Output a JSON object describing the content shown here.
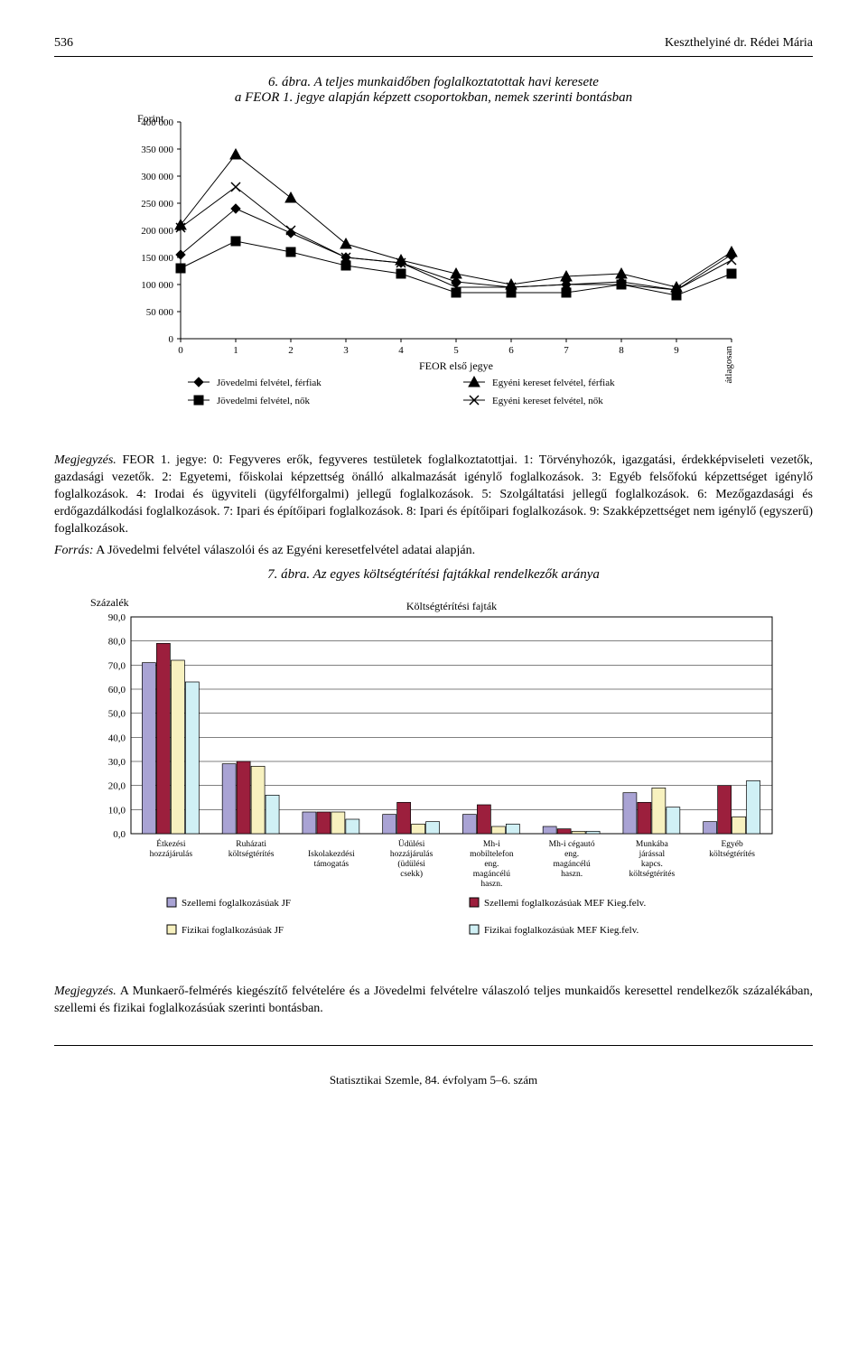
{
  "header": {
    "page_no": "536",
    "author": "Keszthelyiné dr. Rédei Mária"
  },
  "fig6": {
    "title_line1": "6. ábra. A teljes munkaidőben foglalkoztatottak havi keresete",
    "title_line2": "a FEOR 1. jegye alapján képzett csoportokban, nemek szerinti bontásban",
    "y_label": "Forint",
    "x_label": "FEOR első jegye",
    "type": "line",
    "categories": [
      "0",
      "1",
      "2",
      "3",
      "4",
      "5",
      "6",
      "7",
      "8",
      "9",
      "átlagosan"
    ],
    "ylim": [
      0,
      400000
    ],
    "ytick_step": 50000,
    "yticks": [
      "0",
      "50 000",
      "100 000",
      "150 000",
      "200 000",
      "250 000",
      "300 000",
      "350 000",
      "400 000"
    ],
    "background_color": "#ffffff",
    "series": [
      {
        "name": "Jövedelmi felvétel, férfiak",
        "marker": "diamond",
        "color": "#000000",
        "values": [
          155000,
          240000,
          195000,
          150000,
          140000,
          105000,
          95000,
          100000,
          105000,
          90000,
          155000
        ]
      },
      {
        "name": "Jövedelmi felvétel, nők",
        "marker": "square",
        "color": "#000000",
        "values": [
          130000,
          180000,
          160000,
          135000,
          120000,
          85000,
          85000,
          85000,
          100000,
          80000,
          120000
        ]
      },
      {
        "name": "Egyéni kereset felvétel, férfiak",
        "marker": "triangle",
        "color": "#000000",
        "values": [
          210000,
          340000,
          260000,
          175000,
          145000,
          120000,
          100000,
          115000,
          120000,
          95000,
          160000
        ]
      },
      {
        "name": "Egyéni kereset felvétel, nők",
        "marker": "cross",
        "color": "#000000",
        "values": [
          205000,
          280000,
          200000,
          150000,
          140000,
          95000,
          95000,
          100000,
          100000,
          90000,
          145000
        ]
      }
    ]
  },
  "note_fig6": "Megjegyzés. FEOR 1. jegye: 0: Fegyveres erők, fegyveres testületek foglalkoztatottjai. 1: Törvényhozók, igazgatási, érdekképviseleti vezetők, gazdasági vezetők. 2: Egyetemi, főiskolai képzettség önálló alkalmazását igénylő foglalkozások. 3: Egyéb felsőfokú képzettséget igénylő foglalkozások. 4: Irodai és ügyviteli (ügyfélfor­galmi) jellegű foglalkozások. 5: Szolgáltatási jellegű foglalkozások. 6: Mezőgazdasági és erdőgazdálkodási fog­lalkozások. 7: Ipari és építőipari foglalkozások. 8: Ipari és építőipari foglalkozások. 9: Szakképzettséget nem igénylő (egyszerű) foglalkozások.",
  "source_fig6": "Forrás: A Jövedelmi felvétel válaszolói és az Egyéni keresetfelvétel adatai alapján.",
  "fig7": {
    "title": "7. ábra. Az egyes költségtérítési fajtákkal rendelkezők aránya",
    "y_label": "Százalék",
    "x_subtitle": "Költségtérítési fajták",
    "type": "bar",
    "ylim": [
      0,
      90
    ],
    "ytick_step": 10,
    "yticks": [
      "0,0",
      "10,0",
      "20,0",
      "30,0",
      "40,0",
      "50,0",
      "60,0",
      "70,0",
      "80,0",
      "90,0"
    ],
    "categories": [
      "Étkezési hozzájárulás",
      "Ruházati költségtérítés",
      "Iskolakezdési támogatás",
      "Üdülési hozzájárulás (üdülési csekk)",
      "Mh-i mobiltelefon eng. magán­célú haszn.",
      "Mh-i cégautó eng. magán­célú haszn.",
      "Munkába járással kapcs. költségtérítés",
      "Egyéb költségtérítés"
    ],
    "series": [
      {
        "name": "Szellemi foglalkozásúak JF",
        "color": "#a9a3d4",
        "border": "#000000",
        "values": [
          71,
          29,
          9,
          8,
          8,
          3,
          17,
          5
        ]
      },
      {
        "name": "Szellemi foglalkozásúak MEF Kieg.felv.",
        "color": "#9c1f3d",
        "border": "#000000",
        "values": [
          79,
          30,
          9,
          13,
          12,
          2,
          13,
          20
        ]
      },
      {
        "name": "Fizikai foglalkozásúak JF",
        "color": "#f7f1bf",
        "border": "#000000",
        "values": [
          72,
          28,
          9,
          4,
          3,
          1,
          19,
          7
        ]
      },
      {
        "name": "Fizikai foglalkozásúak MEF Kieg.felv.",
        "color": "#d0f0f5",
        "border": "#000000",
        "values": [
          63,
          16,
          6,
          5,
          4,
          1,
          11,
          22
        ]
      }
    ],
    "bar_width": 0.18,
    "background_color": "#ffffff",
    "grid_color": "#000000"
  },
  "note_fig7": "Megjegyzés. A Munkaerő-felmérés kiegészítő felvételére és a Jövedelmi felvételre válaszoló teljes munka­idős keresettel rendelkezők százalékában, szellemi és fizikai foglalkozásúak szerinti bontásban.",
  "footer": "Statisztikai Szemle, 84. évfolyam 5–6. szám"
}
